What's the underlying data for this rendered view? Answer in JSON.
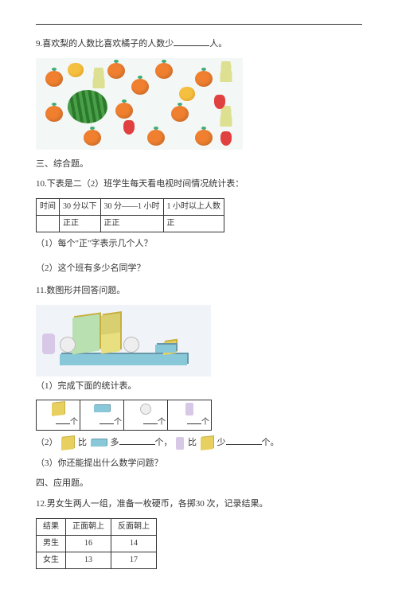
{
  "topline": true,
  "q9": {
    "prefix": "9.喜欢梨的人数比喜欢橘子的人数少",
    "suffix": "人。"
  },
  "fruits": {
    "bg": "#f3f7f5",
    "oranges": [
      [
        12,
        16
      ],
      [
        90,
        6
      ],
      [
        150,
        6
      ],
      [
        200,
        16
      ],
      [
        12,
        60
      ],
      [
        60,
        90
      ],
      [
        100,
        56
      ],
      [
        140,
        90
      ],
      [
        170,
        60
      ],
      [
        200,
        90
      ],
      [
        120,
        26
      ]
    ],
    "melon": [
      40,
      40
    ],
    "pears": [
      [
        230,
        4
      ],
      [
        70,
        12
      ],
      [
        230,
        60
      ]
    ],
    "apples": [
      [
        180,
        36
      ],
      [
        40,
        6
      ]
    ],
    "straw": [
      [
        224,
        46
      ],
      [
        232,
        92
      ],
      [
        110,
        78
      ]
    ]
  },
  "s3": "三、综合题。",
  "q10": {
    "stem": "10.下表是二（2）班学生每天看电视时间情况统计表：",
    "headers": [
      "时间",
      "30 分以下",
      "30 分——1 小时",
      "1 小时以上人数"
    ],
    "tallies": [
      "",
      "正正",
      "正正",
      "正"
    ],
    "sub1": "（1）每个\"正\"字表示几个人？",
    "sub2": "（2）这个班有多少名同学？"
  },
  "q11": {
    "stem": "11.数图形并回答问题。",
    "sub1": "（1）完成下面的统计表。",
    "unit": "个",
    "sub2a": "（2）",
    "more": "多",
    "unit2": "个，",
    "less": "少",
    "unit3": "个。",
    "compare_word": "比",
    "sub3": "（3）你还能提出什么数学问题？"
  },
  "s4": "四、应用题。",
  "q12": {
    "stem": "12.男女生两人一组，准备一枚硬币，各掷30 次，记录结果。",
    "headers": [
      "结果",
      "正面朝上",
      "反面朝上"
    ],
    "rows": [
      [
        "男生",
        "16",
        "14"
      ],
      [
        "女生",
        "13",
        "17"
      ]
    ]
  }
}
